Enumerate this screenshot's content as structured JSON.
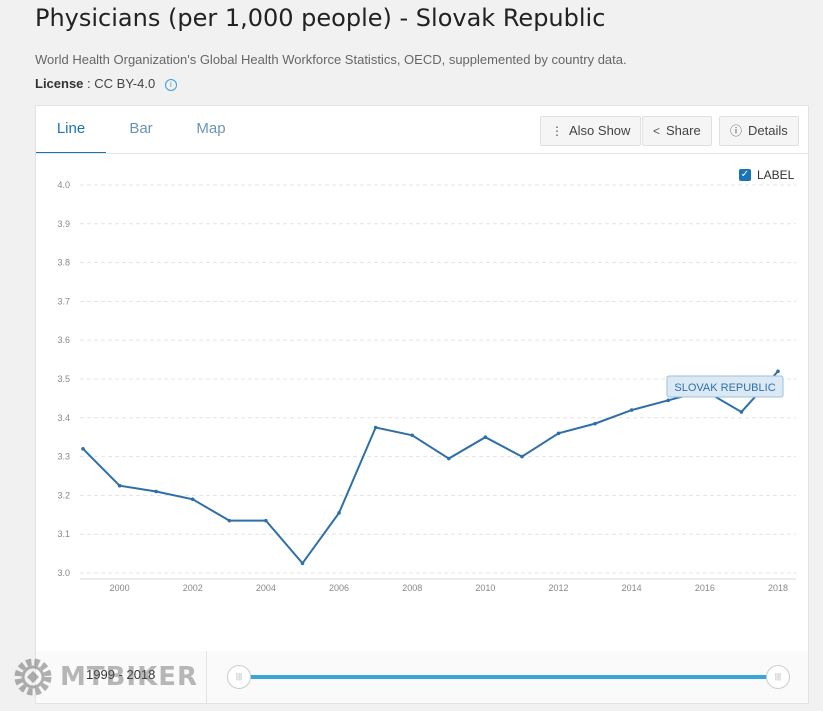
{
  "header": {
    "title": "Physicians (per 1,000 people) - Slovak Republic",
    "source": "World Health Organization's Global Health Workforce Statistics, OECD, supplemented by country data.",
    "license_label": "License",
    "license_value": ": CC BY-4.0"
  },
  "tabs": [
    "Line",
    "Bar",
    "Map"
  ],
  "toolbar": {
    "also_show": "Also Show",
    "share": "Share",
    "details": "Details"
  },
  "legend_toggle": "LABEL",
  "series_label": "SLOVAK REPUBLIC",
  "range": {
    "label": "1999 - 2018"
  },
  "watermark": "MTBIKER",
  "colors": {
    "line": "#2f6fa8",
    "accent": "#1a73b5",
    "track": "#39a6d6"
  },
  "chart_data": {
    "type": "line",
    "title": "Physicians (per 1,000 people) - Slovak Republic",
    "xlabel": "",
    "ylabel": "",
    "ylim": [
      3.0,
      4.0
    ],
    "xlim": [
      1999,
      2018
    ],
    "yticks": [
      "3.0",
      "3.1",
      "3.2",
      "3.3",
      "3.4",
      "3.5",
      "3.6",
      "3.7",
      "3.8",
      "3.9",
      "4.0"
    ],
    "xticks": [
      "2000",
      "2002",
      "2004",
      "2006",
      "2008",
      "2010",
      "2012",
      "2014",
      "2016",
      "2018"
    ],
    "grid": true,
    "series": [
      {
        "name": "SLOVAK REPUBLIC",
        "x": [
          1999,
          2000,
          2001,
          2002,
          2003,
          2004,
          2005,
          2006,
          2007,
          2008,
          2009,
          2010,
          2011,
          2012,
          2013,
          2014,
          2015,
          2016,
          2017,
          2018
        ],
        "values": [
          3.32,
          3.225,
          3.21,
          3.19,
          3.135,
          3.135,
          3.025,
          3.155,
          3.375,
          3.355,
          3.295,
          3.35,
          3.3,
          3.36,
          3.385,
          3.42,
          3.445,
          3.47,
          3.415,
          3.52
        ]
      }
    ]
  }
}
